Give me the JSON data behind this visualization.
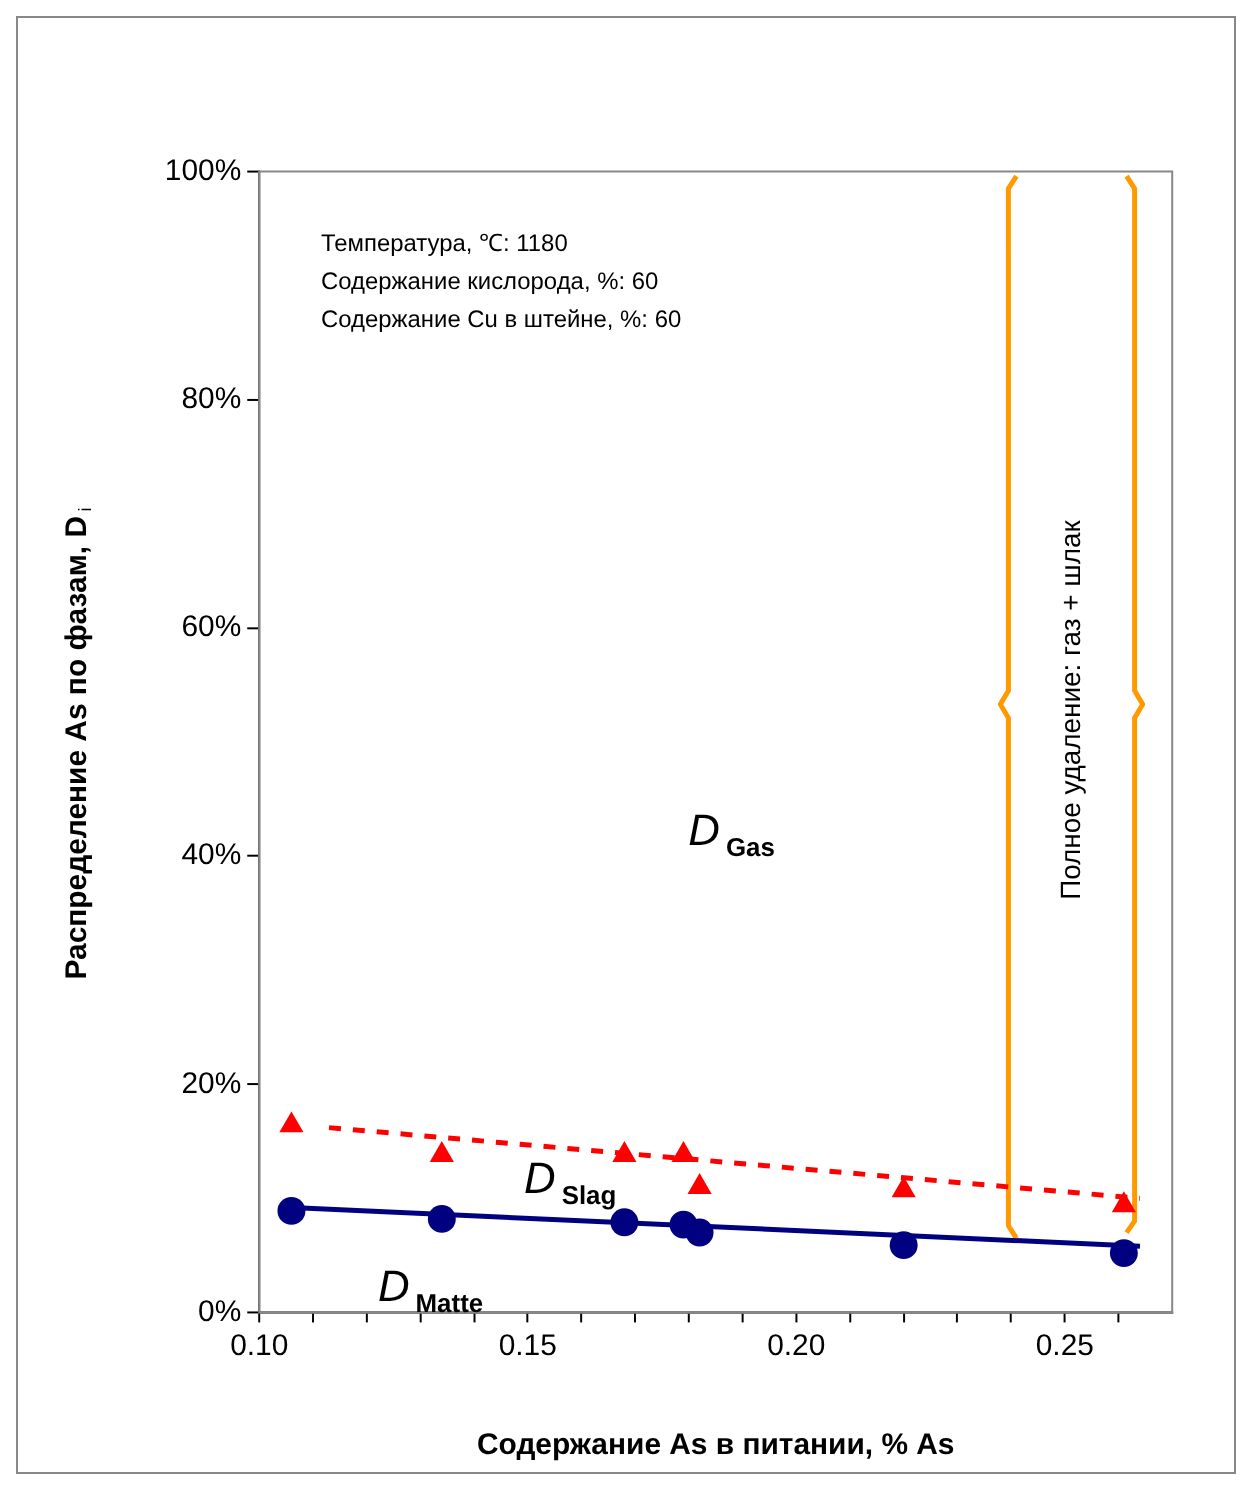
{
  "chart_data": {
    "type": "scatter",
    "xlabel": "Содержание As в питании, % As",
    "ylabel": "Распределение As по фазам, D$_{i}$",
    "xlim": [
      0.1,
      0.27
    ],
    "ylim": [
      0,
      100
    ],
    "xticks": [
      {
        "value": 0.1,
        "label": "0.10"
      },
      {
        "value": 0.11,
        "label": null
      },
      {
        "value": 0.12,
        "label": null
      },
      {
        "value": 0.13,
        "label": null
      },
      {
        "value": 0.14,
        "label": null
      },
      {
        "value": 0.15,
        "label": "0.15"
      },
      {
        "value": 0.16,
        "label": null
      },
      {
        "value": 0.17,
        "label": null
      },
      {
        "value": 0.18,
        "label": null
      },
      {
        "value": 0.19,
        "label": null
      },
      {
        "value": 0.2,
        "label": "0.20"
      },
      {
        "value": 0.21,
        "label": null
      },
      {
        "value": 0.22,
        "label": null
      },
      {
        "value": 0.23,
        "label": null
      },
      {
        "value": 0.24,
        "label": null
      },
      {
        "value": 0.25,
        "label": "0.25"
      },
      {
        "value": 0.26,
        "label": null
      }
    ],
    "yticks": [
      {
        "value": 0,
        "label": "0%"
      },
      {
        "value": 20,
        "label": "20%"
      },
      {
        "value": 40,
        "label": "40%"
      },
      {
        "value": 60,
        "label": "60%"
      },
      {
        "value": 80,
        "label": "80%"
      },
      {
        "value": 100,
        "label": "100%"
      }
    ],
    "grid": false,
    "legend": false,
    "series": [
      {
        "type": "scatter",
        "color": "#ff0000",
        "marker": "triangle",
        "x": [
          0.106,
          0.134,
          0.168,
          0.179,
          0.182,
          0.22,
          0.261
        ],
        "values": [
          16.4,
          13.8,
          13.8,
          13.8,
          11.0,
          10.7,
          9.4
        ]
      },
      {
        "type": "scatter",
        "color": "#000080",
        "marker": "circle",
        "x": [
          0.106,
          0.134,
          0.168,
          0.179,
          0.182,
          0.22,
          0.261
        ],
        "values": [
          8.9,
          8.2,
          7.9,
          7.7,
          7.0,
          5.9,
          5.2
        ]
      },
      {
        "type": "line",
        "color": "#ff0000",
        "line_style": "dashed",
        "marker": "none",
        "x": [
          0.113,
          0.264
        ],
        "values": [
          16.2,
          10.0
        ]
      },
      {
        "type": "line",
        "color": "#000080",
        "line_style": "solid",
        "marker": "none",
        "x": [
          0.106,
          0.264
        ],
        "values": [
          9.2,
          5.8
        ]
      },
      {
        "type": "line",
        "color": "#ff9900",
        "line_style": "solid",
        "marker": "none",
        "x": [
          0.241,
          0.2395,
          0.2395,
          0.238,
          0.2395,
          0.2395,
          0.241
        ],
        "values": [
          99.6,
          98.5,
          54.5,
          53.3,
          52.1,
          7.6,
          6.5
        ]
      },
      {
        "type": "line",
        "color": "#ff9900",
        "line_style": "solid",
        "marker": "none",
        "x": [
          0.2615,
          0.263,
          0.263,
          0.2645,
          0.263,
          0.263,
          0.2615
        ],
        "values": [
          99.6,
          98.5,
          54.5,
          53.3,
          52.1,
          8.0,
          7.0
        ]
      }
    ],
    "annotations": [
      "Температура, ℃: 1180",
      "Содержание кислорода, %: 60",
      "Содержание Cu в штейне, %: 60",
      "D$_{Gas}$",
      "D$_{Slag}$",
      "D$_{Matte}$",
      "Полное удаление: газ + шлак"
    ]
  }
}
